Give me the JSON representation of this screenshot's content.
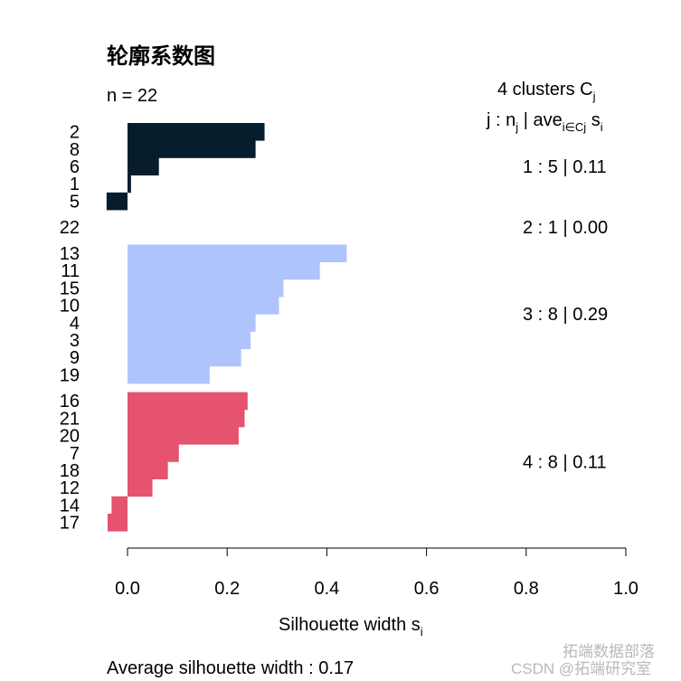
{
  "chart_data": {
    "type": "bar",
    "orientation": "horizontal",
    "title": "轮廓系数图",
    "subtitle": "n = 22",
    "xlabel": "Silhouette width s",
    "xlabel_subscript": "i",
    "xlim": [
      0.0,
      1.0
    ],
    "xticks": [
      "0.0",
      "0.2",
      "0.4",
      "0.6",
      "0.8",
      "1.0"
    ],
    "grid": false,
    "legend_header": {
      "line1": "4  clusters  C",
      "line1_sub": "j",
      "line2_a": "j :  n",
      "line2_a_sub": "j",
      "line2_b": " | ave",
      "line2_b_sub": "i∈Cj",
      "line2_c": "  s",
      "line2_c_sub": "i"
    },
    "clusters": [
      {
        "id": 1,
        "n": 5,
        "avg": "0.11",
        "label": "1 :   5  |  0.11",
        "color": "#061D2E",
        "items": [
          {
            "obs": "2",
            "s": 0.275
          },
          {
            "obs": "8",
            "s": 0.257
          },
          {
            "obs": "6",
            "s": 0.063
          },
          {
            "obs": "1",
            "s": 0.007
          },
          {
            "obs": "5",
            "s": -0.042
          }
        ]
      },
      {
        "id": 2,
        "n": 1,
        "avg": "0.00",
        "label": "2 :   1  |  0.00",
        "color": "#7B9BE0",
        "items": [
          {
            "obs": "22",
            "s": 0.0
          }
        ]
      },
      {
        "id": 3,
        "n": 8,
        "avg": "0.29",
        "label": "3 :   8  |  0.29",
        "color": "#AFC4FC",
        "items": [
          {
            "obs": "13",
            "s": 0.44
          },
          {
            "obs": "11",
            "s": 0.386
          },
          {
            "obs": "15",
            "s": 0.313
          },
          {
            "obs": "10",
            "s": 0.304
          },
          {
            "obs": "4",
            "s": 0.257
          },
          {
            "obs": "3",
            "s": 0.247
          },
          {
            "obs": "9",
            "s": 0.228
          },
          {
            "obs": "19",
            "s": 0.165
          }
        ]
      },
      {
        "id": 4,
        "n": 8,
        "avg": "0.11",
        "label": "4 :   8  |  0.11",
        "color": "#E5536E",
        "items": [
          {
            "obs": "16",
            "s": 0.241
          },
          {
            "obs": "21",
            "s": 0.235
          },
          {
            "obs": "20",
            "s": 0.223
          },
          {
            "obs": "7",
            "s": 0.103
          },
          {
            "obs": "18",
            "s": 0.081
          },
          {
            "obs": "12",
            "s": 0.05
          },
          {
            "obs": "14",
            "s": -0.032
          },
          {
            "obs": "17",
            "s": -0.04
          }
        ]
      }
    ],
    "footer": "Average silhouette width :  0.17"
  },
  "watermark": {
    "line1": "拓端数据部落",
    "line2": "CSDN @拓端研究室"
  }
}
